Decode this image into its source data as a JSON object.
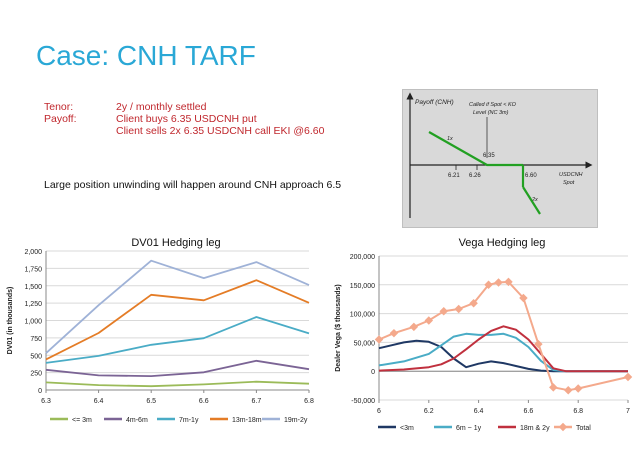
{
  "slide": {
    "title": "Case: CNH TARF",
    "terms": [
      {
        "key": "Tenor:",
        "lines": [
          "2y / monthly settled"
        ]
      },
      {
        "key": "Payoff:",
        "lines": [
          "Client buys 6.35 USDCNH put",
          "Client sells 2x 6.35 USDCNH call EKI @6.60"
        ]
      }
    ],
    "note": "Large position unwinding will happen around CNH approach 6.5"
  },
  "payoff_diagram": {
    "y_label": "Payoff (CNH)",
    "callout": [
      "Called if Spot < KO",
      "Level (NC 3m)"
    ],
    "x_label": [
      "USDCNH",
      "Spot"
    ],
    "ticks": [
      "6.21",
      "6.26",
      "6.60"
    ],
    "strike_label": "6.35",
    "left_slope_label": "1x",
    "right_slope_label": "2x",
    "line_color": "#22a022"
  },
  "chart_data": [
    {
      "type": "line",
      "title": "DV01 Hedging leg",
      "xlabel": "",
      "ylabel": "DV01 (in thousands)",
      "x": [
        6.3,
        6.4,
        6.5,
        6.6,
        6.7,
        6.8
      ],
      "x_ticks": [
        "6.3",
        "6.4",
        "6.5",
        "6.6",
        "6.7",
        "6.8"
      ],
      "ylim": [
        0,
        2000
      ],
      "y_ticks": [
        "0",
        "250",
        "500",
        "750",
        "1,000",
        "1,250",
        "1,500",
        "1,750",
        "2,000"
      ],
      "grid": true,
      "legend": "bottom",
      "series": [
        {
          "name": "<= 3m",
          "color": "#9bbb59",
          "values": [
            110,
            70,
            55,
            80,
            120,
            90
          ]
        },
        {
          "name": "4m-6m",
          "color": "#7b6495",
          "values": [
            290,
            210,
            200,
            255,
            420,
            300
          ]
        },
        {
          "name": "7m-1y",
          "color": "#4aacc6",
          "values": [
            390,
            490,
            650,
            745,
            1050,
            815
          ]
        },
        {
          "name": "13m-18m",
          "color": "#e47c26",
          "values": [
            440,
            820,
            1370,
            1290,
            1580,
            1255
          ]
        },
        {
          "name": "19m-2y",
          "color": "#9fb2d7",
          "values": [
            530,
            1220,
            1860,
            1610,
            1840,
            1510
          ]
        }
      ]
    },
    {
      "type": "line",
      "title": "Vega Hedging leg",
      "xlabel": "",
      "ylabel": "Dealer Vega ($ thousands)",
      "x_ticks": [
        "6",
        "6.2",
        "6.4",
        "6.6",
        "6.8",
        "7"
      ],
      "xlim": [
        6,
        7
      ],
      "ylim": [
        -50000,
        200000
      ],
      "y_ticks": [
        "-50,000",
        "0",
        "50,000",
        "100,000",
        "150,000",
        "200,000"
      ],
      "grid": true,
      "legend": "bottom",
      "series": [
        {
          "name": "<3m",
          "color": "#1f3864",
          "points": [
            [
              6.0,
              40000
            ],
            [
              6.05,
              45000
            ],
            [
              6.1,
              50000
            ],
            [
              6.15,
              53000
            ],
            [
              6.2,
              51000
            ],
            [
              6.25,
              42000
            ],
            [
              6.3,
              22000
            ],
            [
              6.35,
              7000
            ],
            [
              6.4,
              13000
            ],
            [
              6.45,
              17000
            ],
            [
              6.5,
              14000
            ],
            [
              6.55,
              9000
            ],
            [
              6.6,
              4000
            ],
            [
              6.65,
              1000
            ],
            [
              6.7,
              0
            ],
            [
              6.75,
              0
            ],
            [
              6.8,
              0
            ],
            [
              6.9,
              0
            ],
            [
              7.0,
              0
            ]
          ]
        },
        {
          "name": "6m ~ 1y",
          "color": "#4aacc6",
          "points": [
            [
              6.0,
              10000
            ],
            [
              6.1,
              17000
            ],
            [
              6.2,
              30000
            ],
            [
              6.25,
              45000
            ],
            [
              6.3,
              60000
            ],
            [
              6.35,
              65000
            ],
            [
              6.4,
              63000
            ],
            [
              6.45,
              63000
            ],
            [
              6.5,
              65000
            ],
            [
              6.55,
              58000
            ],
            [
              6.6,
              42000
            ],
            [
              6.65,
              18000
            ],
            [
              6.7,
              2000
            ],
            [
              6.75,
              0
            ],
            [
              6.8,
              0
            ],
            [
              6.9,
              0
            ],
            [
              7.0,
              0
            ]
          ]
        },
        {
          "name": "18m & 2y",
          "color": "#c0303e",
          "points": [
            [
              6.0,
              1000
            ],
            [
              6.1,
              3000
            ],
            [
              6.2,
              7000
            ],
            [
              6.25,
              12000
            ],
            [
              6.3,
              22000
            ],
            [
              6.35,
              38000
            ],
            [
              6.4,
              55000
            ],
            [
              6.45,
              70000
            ],
            [
              6.5,
              78000
            ],
            [
              6.55,
              72000
            ],
            [
              6.6,
              55000
            ],
            [
              6.65,
              30000
            ],
            [
              6.7,
              5000
            ],
            [
              6.75,
              0
            ],
            [
              6.8,
              0
            ],
            [
              6.9,
              0
            ],
            [
              7.0,
              0
            ]
          ]
        },
        {
          "name": "Total",
          "color": "#f4a98c",
          "markers": true,
          "points": [
            [
              6.0,
              55000
            ],
            [
              6.06,
              66000
            ],
            [
              6.14,
              77000
            ],
            [
              6.2,
              88000
            ],
            [
              6.26,
              104000
            ],
            [
              6.32,
              108000
            ],
            [
              6.38,
              118000
            ],
            [
              6.44,
              150000
            ],
            [
              6.48,
              154000
            ],
            [
              6.52,
              155000
            ],
            [
              6.58,
              127000
            ],
            [
              6.64,
              47000
            ],
            [
              6.7,
              -28000
            ],
            [
              6.76,
              -33000
            ],
            [
              6.8,
              -30000
            ],
            [
              7.0,
              -10000
            ]
          ]
        }
      ]
    }
  ]
}
